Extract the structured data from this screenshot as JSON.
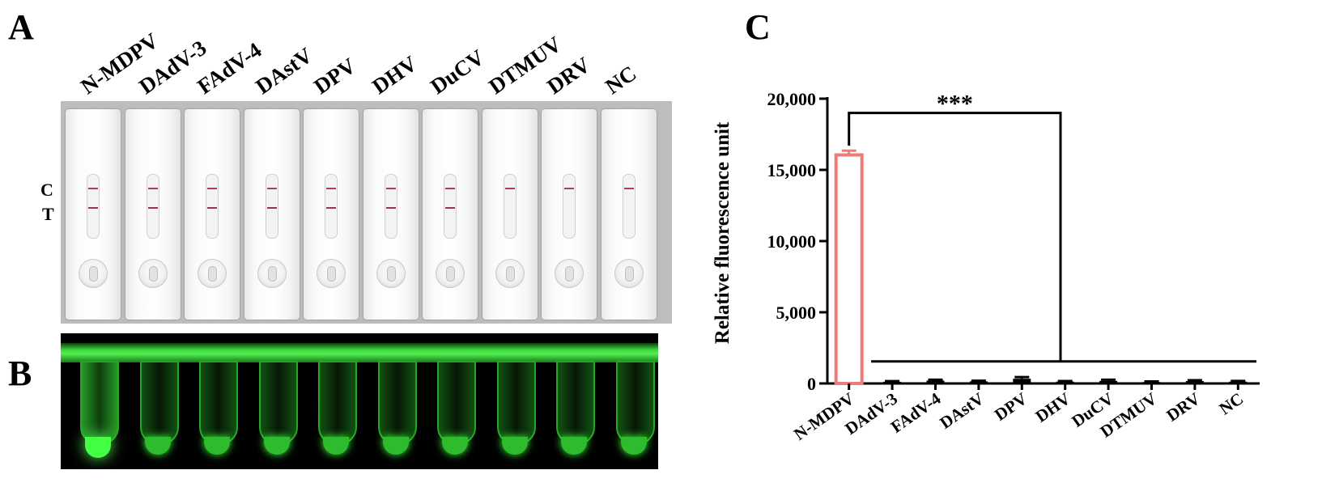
{
  "panels": {
    "a": "A",
    "b": "B",
    "c": "C"
  },
  "strip_test": {
    "sample_labels": [
      "N-MDPV",
      "DAdV-3",
      "FAdV-4",
      "DAstV",
      "DPV",
      "DHV",
      "DuCV",
      "DTMUV",
      "DRV",
      "NC"
    ],
    "control_label": "C",
    "test_label": "T",
    "test_line_visible": [
      true,
      true,
      true,
      true,
      true,
      true,
      true,
      false,
      false,
      false
    ],
    "control_line_color": "#b03a5a",
    "test_line_color": "#a03050"
  },
  "fluorescence_tubes": {
    "bright_tube_index": 0,
    "glow_color": "#45ff45"
  },
  "chart_data": {
    "type": "bar",
    "categories": [
      "N-MDPV",
      "DAdV-3",
      "FAdV-4",
      "DAstV",
      "DPV",
      "DHV",
      "DuCV",
      "DTMUV",
      "DRV",
      "NC"
    ],
    "values": [
      16050,
      120,
      200,
      150,
      330,
      130,
      180,
      100,
      170,
      130
    ],
    "errors": [
      300,
      40,
      60,
      40,
      120,
      40,
      80,
      40,
      60,
      50
    ],
    "ylabel": "Relative fluorescence unit",
    "ylim": [
      0,
      20000
    ],
    "yticks": [
      0,
      5000,
      10000,
      15000,
      20000
    ],
    "ytick_labels": [
      "0",
      "5,000",
      "10,000",
      "15,000",
      "20,000"
    ],
    "highlight_color": "#f07a7a",
    "other_color": "#000000",
    "significance_label": "***",
    "grid": false
  }
}
